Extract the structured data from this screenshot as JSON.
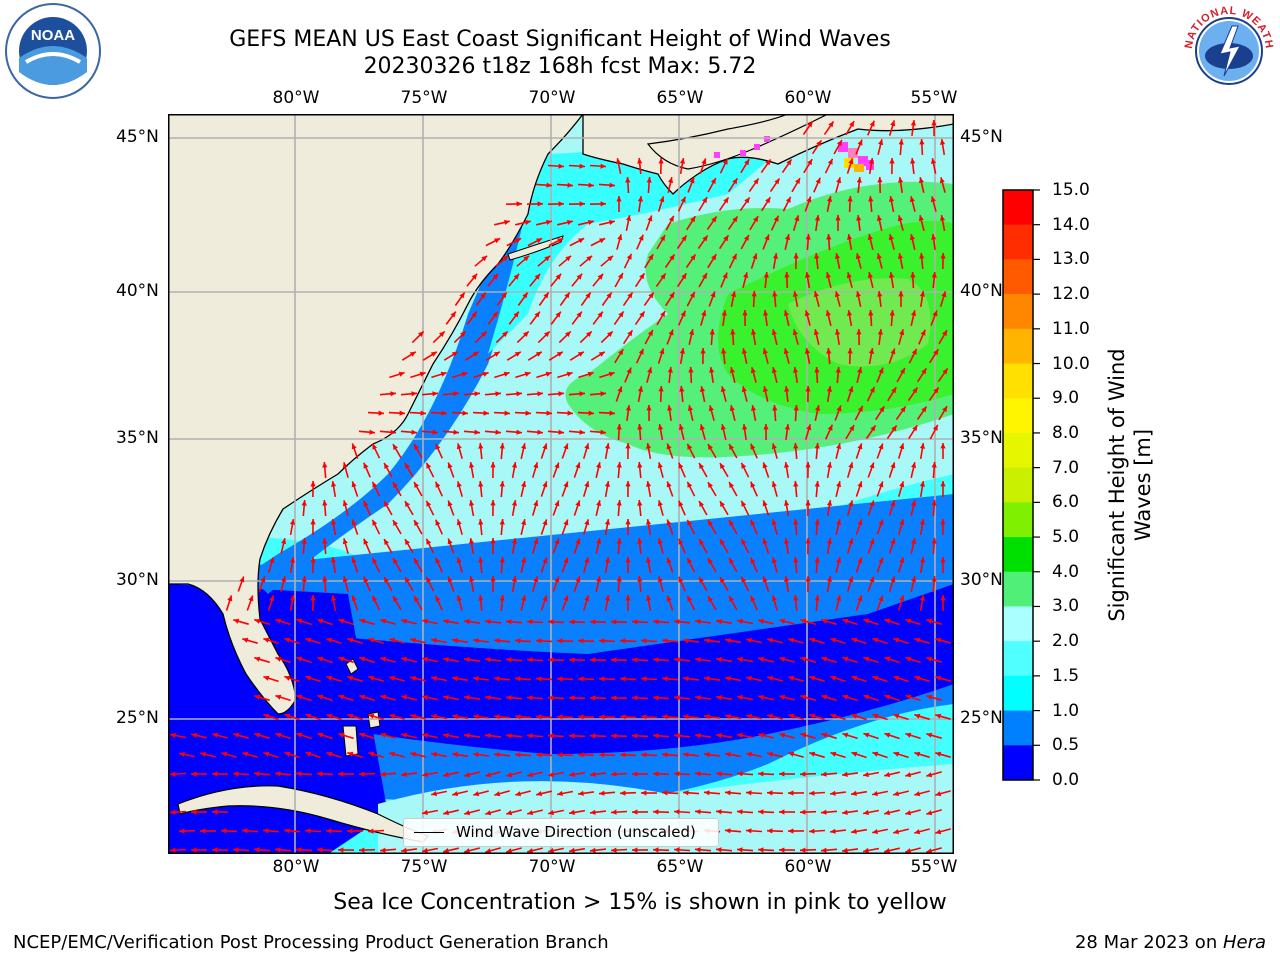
{
  "title": {
    "line1": "GEFS MEAN US East Coast Significant Height of Wind Waves",
    "line2": "20230326 t18z 168h fcst   Max: 5.72"
  },
  "map": {
    "lon_labels": [
      "80°W",
      "75°W",
      "70°W",
      "65°W",
      "60°W",
      "55°W"
    ],
    "lat_labels": [
      "45°N",
      "40°N",
      "35°N",
      "30°N",
      "25°N"
    ],
    "land_color": "#efecdc",
    "arrow_color": "#ff0000",
    "grid_color": "#b0b0b0"
  },
  "legend": {
    "label": "Wind Wave Direction (unscaled)"
  },
  "colorbar": {
    "label_line1": "Significant Height of Wind",
    "label_line2": "Waves [m]",
    "ticks": [
      "15.0",
      "14.0",
      "13.0",
      "12.0",
      "11.0",
      "10.0",
      "9.0",
      "8.0",
      "7.0",
      "6.0",
      "5.0",
      "4.0",
      "3.0",
      "2.0",
      "1.5",
      "1.0",
      "0.5",
      "0.0"
    ],
    "colors": [
      "#ff0000",
      "#ff2d00",
      "#ff5a00",
      "#ff8700",
      "#ffb400",
      "#ffe000",
      "#fff500",
      "#e6f500",
      "#c8f000",
      "#7ef000",
      "#00e000",
      "#50f078",
      "#aaffff",
      "#50ffff",
      "#00ffff",
      "#0080ff",
      "#0000ff"
    ]
  },
  "caption": "Sea Ice Concentration > 15% is shown in pink to yellow",
  "footer": {
    "left": "NCEP/EMC/Verification Post Processing Product Generation Branch",
    "right_date": "28 Mar 2023 on ",
    "right_host": "Hera"
  },
  "logos": {
    "noaa_text": "NOAA",
    "nws_text": "NATIONAL WEATHER SERVICE"
  }
}
